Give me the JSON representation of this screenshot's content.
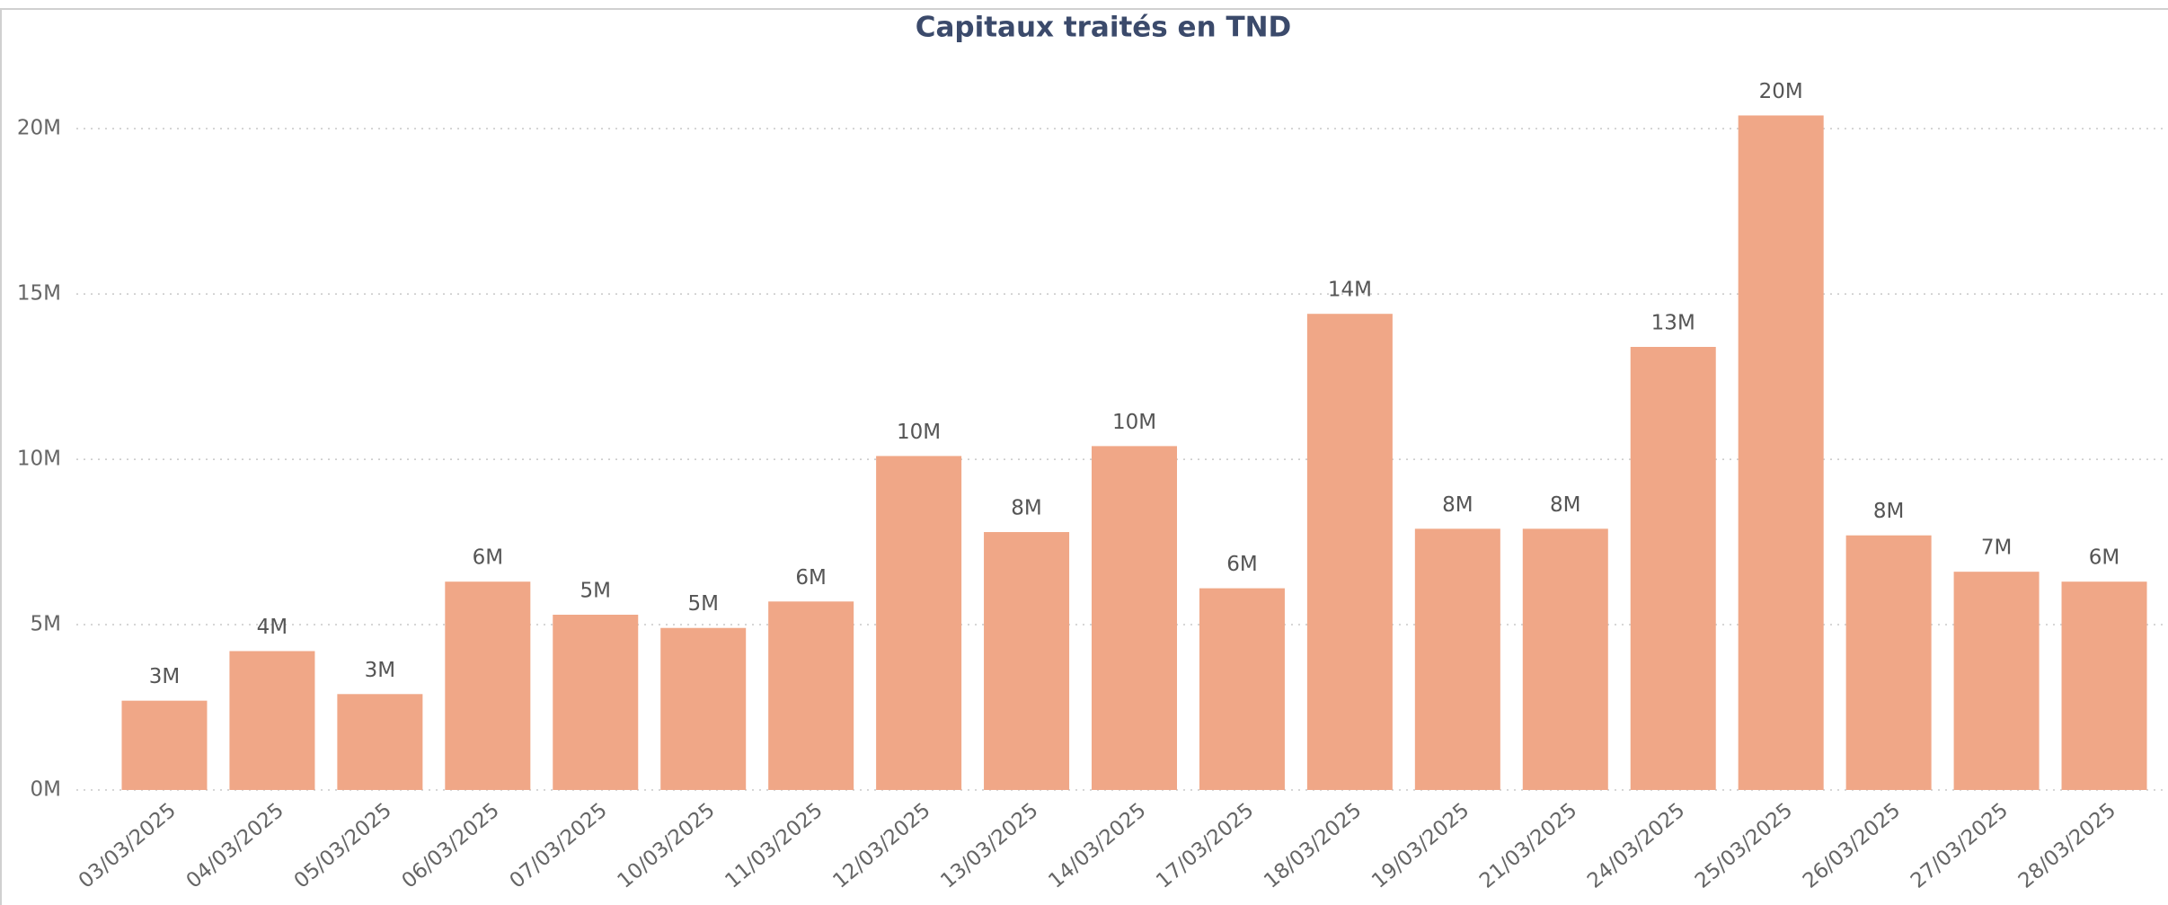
{
  "chart_data": {
    "type": "bar",
    "title": "Capitaux traités en TND",
    "categories": [
      "03/03/2025",
      "04/03/2025",
      "05/03/2025",
      "06/03/2025",
      "07/03/2025",
      "10/03/2025",
      "11/03/2025",
      "12/03/2025",
      "13/03/2025",
      "14/03/2025",
      "17/03/2025",
      "18/03/2025",
      "19/03/2025",
      "21/03/2025",
      "24/03/2025",
      "25/03/2025",
      "26/03/2025",
      "27/03/2025",
      "28/03/2025"
    ],
    "values": [
      2700000,
      4200000,
      2900000,
      6300000,
      5300000,
      4900000,
      5700000,
      10100000,
      7800000,
      10400000,
      6100000,
      14400000,
      7900000,
      7900000,
      13400000,
      20400000,
      7700000,
      6600000,
      6300000
    ],
    "value_labels": [
      "3M",
      "4M",
      "3M",
      "6M",
      "5M",
      "5M",
      "6M",
      "10M",
      "8M",
      "10M",
      "6M",
      "14M",
      "8M",
      "8M",
      "13M",
      "20M",
      "8M",
      "7M",
      "6M"
    ],
    "color": "#f0a787",
    "ylim": [
      0,
      22000000
    ],
    "yticks": [
      {
        "value": 0,
        "label": "0M"
      },
      {
        "value": 5000000,
        "label": "5M"
      },
      {
        "value": 10000000,
        "label": "10M"
      },
      {
        "value": 15000000,
        "label": "15M"
      },
      {
        "value": 20000000,
        "label": "20M"
      }
    ],
    "grid": true
  }
}
